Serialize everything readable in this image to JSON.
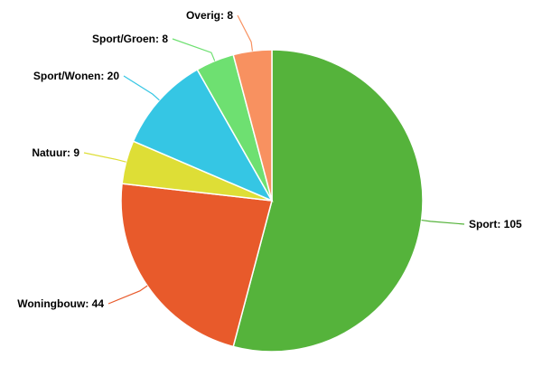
{
  "chart_data": {
    "type": "pie",
    "slices": [
      {
        "name": "Sport",
        "value": 105,
        "label": "Sport: 105",
        "color": "#55b33b"
      },
      {
        "name": "Woningbouw",
        "value": 44,
        "label": "Woningbouw: 44",
        "color": "#e85a2b"
      },
      {
        "name": "Natuur",
        "value": 9,
        "label": "Natuur: 9",
        "color": "#dede36"
      },
      {
        "name": "Sport/Wonen",
        "value": 20,
        "label": "Sport/Wonen: 20",
        "color": "#35c6e4"
      },
      {
        "name": "Sport/Groen",
        "value": 8,
        "label": "Sport/Groen: 8",
        "color": "#6ee071"
      },
      {
        "name": "Overig",
        "value": 8,
        "label": "Overig: 8",
        "color": "#f89160"
      }
    ]
  }
}
